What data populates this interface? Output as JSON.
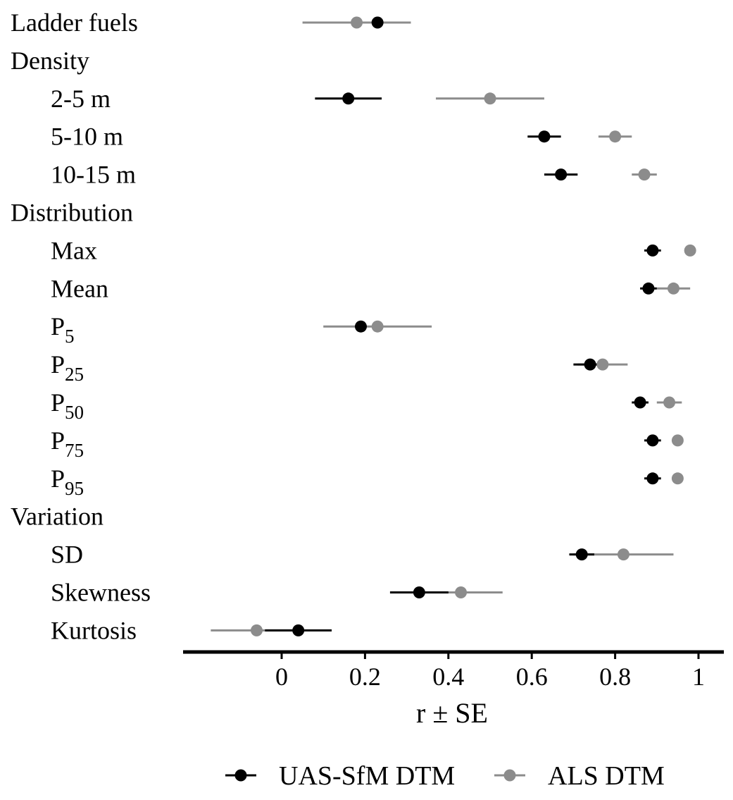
{
  "chart_data": {
    "type": "dot-errorbar",
    "title": "",
    "xlabel": "r ± SE",
    "xlim": [
      -0.24,
      1.06
    ],
    "xticks": [
      0,
      0.2,
      0.4,
      0.6,
      0.8,
      1
    ],
    "xtick_labels": [
      "0",
      "0.2",
      "0.4",
      "0.6",
      "0.8",
      "1"
    ],
    "colors": {
      "uas": "#000000",
      "als": "#8c8c8c"
    },
    "legend": {
      "position": "bottom",
      "entries": [
        {
          "key": "uas",
          "label": "UAS-SfM DTM"
        },
        {
          "key": "als",
          "label": "ALS DTM"
        }
      ]
    },
    "rows": [
      {
        "label": "Ladder fuels",
        "indent": false,
        "uas": {
          "r": 0.23,
          "se": 0.0
        },
        "als": {
          "r": 0.18,
          "se": 0.13
        }
      },
      {
        "label": "Density",
        "indent": false,
        "header": true
      },
      {
        "label": "2-5 m",
        "indent": true,
        "uas": {
          "r": 0.16,
          "se": 0.08
        },
        "als": {
          "r": 0.5,
          "se": 0.13
        }
      },
      {
        "label": "5-10 m",
        "indent": true,
        "uas": {
          "r": 0.63,
          "se": 0.04
        },
        "als": {
          "r": 0.8,
          "se": 0.04
        }
      },
      {
        "label": "10-15 m",
        "indent": true,
        "uas": {
          "r": 0.67,
          "se": 0.04
        },
        "als": {
          "r": 0.87,
          "se": 0.03
        }
      },
      {
        "label": "Distribution",
        "indent": false,
        "header": true
      },
      {
        "label": "Max",
        "indent": true,
        "uas": {
          "r": 0.89,
          "se": 0.02
        },
        "als": {
          "r": 0.98,
          "se": 0.0
        }
      },
      {
        "label": "Mean",
        "indent": true,
        "uas": {
          "r": 0.88,
          "se": 0.02
        },
        "als": {
          "r": 0.94,
          "se": 0.04
        }
      },
      {
        "label": "P",
        "sub": "5",
        "indent": true,
        "uas": {
          "r": 0.19,
          "se": 0.0
        },
        "als": {
          "r": 0.23,
          "se": 0.13
        }
      },
      {
        "label": "P",
        "sub": "25",
        "indent": true,
        "uas": {
          "r": 0.74,
          "se": 0.04
        },
        "als": {
          "r": 0.77,
          "se": 0.06
        }
      },
      {
        "label": "P",
        "sub": "50",
        "indent": true,
        "uas": {
          "r": 0.86,
          "se": 0.02
        },
        "als": {
          "r": 0.93,
          "se": 0.03
        }
      },
      {
        "label": "P",
        "sub": "75",
        "indent": true,
        "uas": {
          "r": 0.89,
          "se": 0.02
        },
        "als": {
          "r": 0.95,
          "se": 0.0
        }
      },
      {
        "label": "P",
        "sub": "95",
        "indent": true,
        "uas": {
          "r": 0.89,
          "se": 0.02
        },
        "als": {
          "r": 0.95,
          "se": 0.0
        }
      },
      {
        "label": "Variation",
        "indent": false,
        "header": true
      },
      {
        "label": "SD",
        "indent": true,
        "uas": {
          "r": 0.72,
          "se": 0.03
        },
        "als": {
          "r": 0.82,
          "se": 0.12
        }
      },
      {
        "label": "Skewness",
        "indent": true,
        "uas": {
          "r": 0.33,
          "se": 0.07
        },
        "als": {
          "r": 0.43,
          "se": 0.1
        }
      },
      {
        "label": "Kurtosis",
        "indent": true,
        "uas": {
          "r": 0.04,
          "se": 0.08
        },
        "als": {
          "r": -0.06,
          "se": 0.11
        }
      }
    ]
  }
}
